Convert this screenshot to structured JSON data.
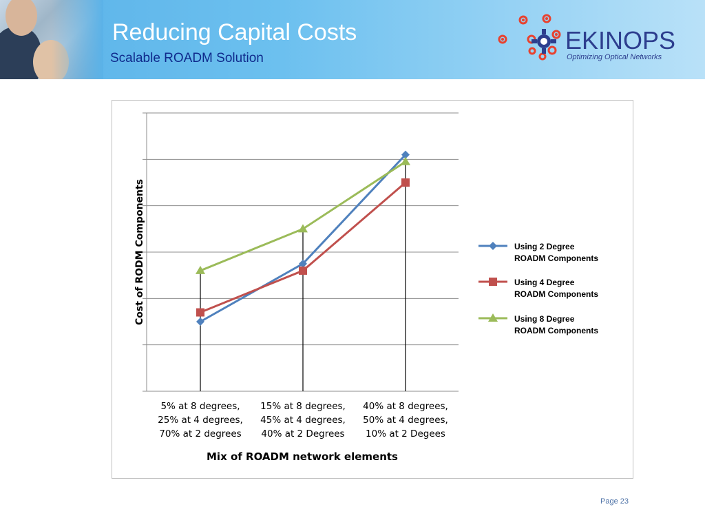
{
  "header": {
    "title": "Reducing Capital Costs",
    "subtitle": "Scalable ROADM Solution"
  },
  "logo": {
    "name": "EKINOPS",
    "tagline": "Optimizing Optical Networks"
  },
  "footer": {
    "page": "Page 23"
  },
  "colors": {
    "series_2deg": "#4f81bd",
    "series_4deg": "#c0504d",
    "series_8deg": "#9bbb59",
    "logo_red": "#e8422f",
    "logo_blue": "#2d3e8e"
  },
  "chart_data": {
    "type": "line",
    "title": "",
    "xlabel": "Mix of ROADM network elements",
    "ylabel": "Cost of RODM Components",
    "categories": [
      [
        "5% at 8 degrees,",
        "25% at 4 degrees,",
        "70% at 2 degrees"
      ],
      [
        "15% at 8 degrees,",
        "45% at 4 degrees,",
        "40% at 2 Degrees"
      ],
      [
        "40% at 8 degrees,",
        "50% at 4 degrees,",
        "10% at 2 Degees"
      ]
    ],
    "ylim": [
      0,
      6
    ],
    "grid": true,
    "ytick_labels": false,
    "legend": "right",
    "series": [
      {
        "name": "Using 2 Degree ROADM Components",
        "legend_lines": [
          "Using 2 Degree",
          "ROADM Components"
        ],
        "marker": "diamond",
        "values": [
          1.5,
          2.75,
          5.1
        ]
      },
      {
        "name": "Using 4 Degree ROADM Components",
        "legend_lines": [
          "Using 4 Degree",
          "ROADM Components"
        ],
        "marker": "square",
        "values": [
          1.7,
          2.6,
          4.5
        ]
      },
      {
        "name": "Using 8 Degree ROADM Components",
        "legend_lines": [
          "Using 8 Degree",
          "ROADM Components"
        ],
        "marker": "triangle",
        "values": [
          2.6,
          3.5,
          4.95
        ]
      }
    ]
  }
}
